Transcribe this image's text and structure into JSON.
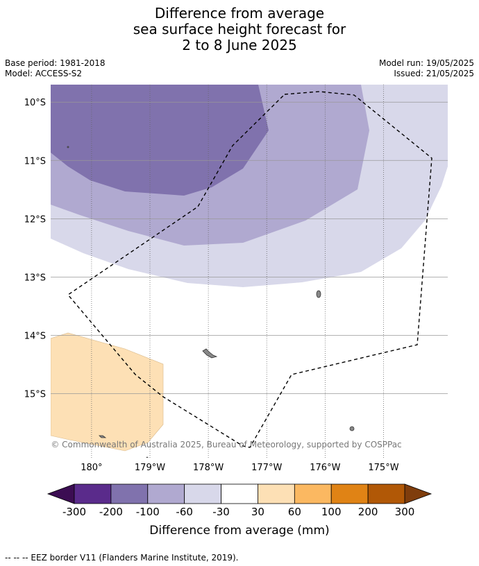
{
  "title": {
    "line1": "Difference from average",
    "line2": "sea surface height forecast for",
    "line3": "2 to 8 June 2025"
  },
  "meta": {
    "base_period": "Base period: 1981-2018",
    "model": "Model: ACCESS-S2",
    "model_run": "Model run: 19/05/2025",
    "issued": "Issued: 21/05/2025"
  },
  "map": {
    "lon_min": -180.7,
    "lon_max": -173.9,
    "lat_min": -16.1,
    "lat_max": -9.7,
    "lat_ticks": [
      {
        "value": -10,
        "label": "10°S"
      },
      {
        "value": -11,
        "label": "11°S"
      },
      {
        "value": -12,
        "label": "12°S"
      },
      {
        "value": -13,
        "label": "13°S"
      },
      {
        "value": -14,
        "label": "14°S"
      },
      {
        "value": -15,
        "label": "15°S"
      }
    ],
    "lon_ticks": [
      {
        "value": -180,
        "label": "180°"
      },
      {
        "value": -179,
        "label": "179°W"
      },
      {
        "value": -178,
        "label": "178°W"
      },
      {
        "value": -177,
        "label": "177°W"
      },
      {
        "value": -176,
        "label": "176°W"
      },
      {
        "value": -175,
        "label": "175°W"
      }
    ],
    "copyright": "© Commonwealth of Australia 2025, Bureau of Meteorology, supported by COSPPac",
    "fill_colors": {
      "band_-60_-30": "#d8d8ea",
      "band_-100_-60": "#b0a9d0",
      "band_-200_-100": "#8072ad",
      "band_30_60": "#fde0b5",
      "coast": "#888888"
    }
  },
  "legend": {
    "tick_labels": [
      "-300",
      "-200",
      "-100",
      "-60",
      "-30",
      "30",
      "60",
      "100",
      "200",
      "300"
    ],
    "colors": [
      "#5a2b8b",
      "#8072ad",
      "#b0a9d0",
      "#d8d8ea",
      "#ffffff",
      "#fde0b5",
      "#fbb861",
      "#e08315",
      "#b15806"
    ],
    "under_color": "#3c0d53",
    "over_color": "#7f3d0c",
    "label": "Difference from average (mm)"
  },
  "footer": {
    "eez_note": "--  --  -- EEZ border V11 (Flanders Marine Institute, 2019)."
  }
}
